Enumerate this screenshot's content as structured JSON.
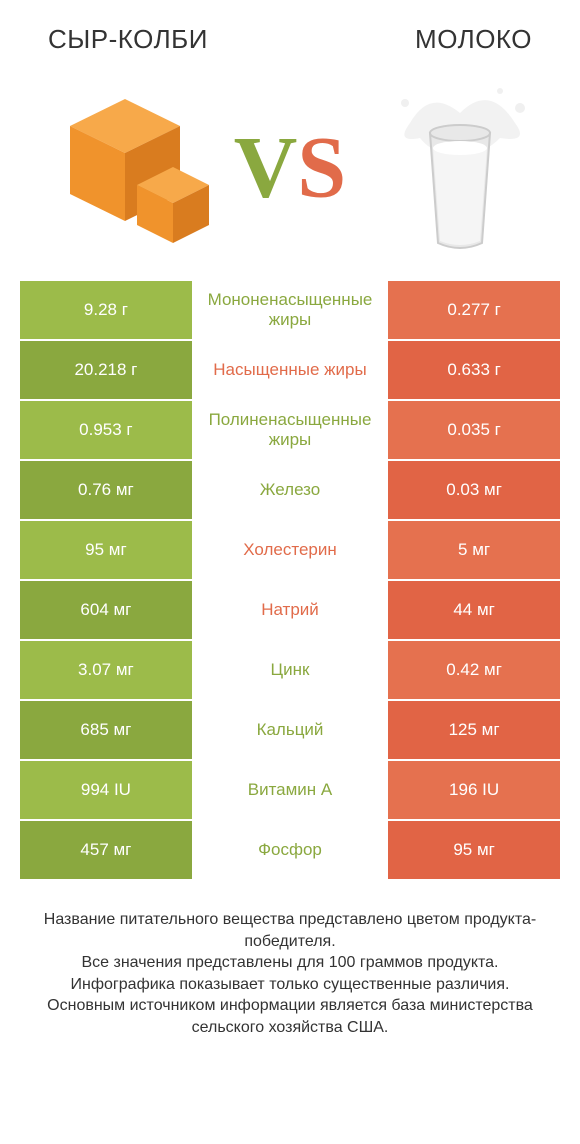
{
  "title_left": "СЫР-КОЛБИ",
  "title_right": "МОЛОКО",
  "vs_v": "V",
  "vs_s": "S",
  "colors": {
    "left_bg_a": "#9cbb4a",
    "left_bg_b": "#8aa83f",
    "right_bg_a": "#e5714f",
    "right_bg_b": "#e16445",
    "mid_text_left": "#8aa83f",
    "mid_text_right": "#e16b4a",
    "cheese_body": "#f0932c",
    "cheese_top": "#f7a94a",
    "cheese_side": "#d97c1f",
    "milk_glass": "#e8e8e8",
    "milk_fill": "#f5f5f5",
    "milk_splash": "#f0f0f0"
  },
  "rows": [
    {
      "left": "9.28 г",
      "mid": "Мононенасыщенные жиры",
      "right": "0.277 г",
      "winner": "left"
    },
    {
      "left": "20.218 г",
      "mid": "Насыщенные жиры",
      "right": "0.633 г",
      "winner": "right"
    },
    {
      "left": "0.953 г",
      "mid": "Полиненасыщенные жиры",
      "right": "0.035 г",
      "winner": "left"
    },
    {
      "left": "0.76 мг",
      "mid": "Железо",
      "right": "0.03 мг",
      "winner": "left"
    },
    {
      "left": "95 мг",
      "mid": "Холестерин",
      "right": "5 мг",
      "winner": "right"
    },
    {
      "left": "604 мг",
      "mid": "Натрий",
      "right": "44 мг",
      "winner": "right"
    },
    {
      "left": "3.07 мг",
      "mid": "Цинк",
      "right": "0.42 мг",
      "winner": "left"
    },
    {
      "left": "685 мг",
      "mid": "Кальций",
      "right": "125 мг",
      "winner": "left"
    },
    {
      "left": "994 IU",
      "mid": "Витамин A",
      "right": "196 IU",
      "winner": "left"
    },
    {
      "left": "457 мг",
      "mid": "Фосфор",
      "right": "95 мг",
      "winner": "left"
    }
  ],
  "footer": "Название питательного вещества представлено цветом продукта-победителя.\nВсе значения представлены для 100 граммов продукта.\nИнфографика показывает только существенные различия.\nОсновным источником информации является база министерства сельского хозяйства США."
}
